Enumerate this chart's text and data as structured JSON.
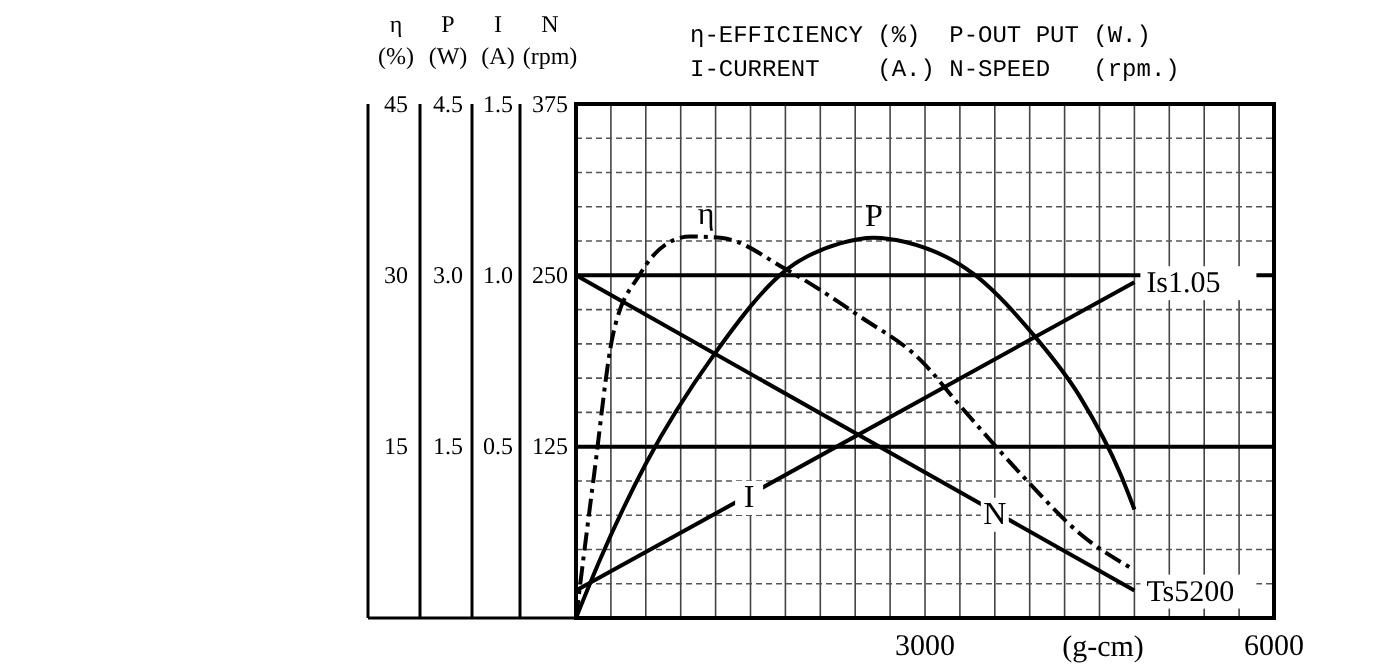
{
  "chart_data": [
    {
      "type": "line",
      "annotations": [
        "η-EFFICIENCY (%)  P-OUT PUT (W.)",
        "I-CURRENT    (A.) N-SPEED   (rpm.)",
        "Is1.05",
        "Ts5200"
      ],
      "xlabel": "(g-cm)",
      "ylabel": "I (A)",
      "y2label": "N (rpm)",
      "xlim": [
        0,
        6000
      ],
      "xticks": [
        {
          "value": 300,
          "label": null
        },
        {
          "value": 600,
          "label": null
        },
        {
          "value": 900,
          "label": null
        },
        {
          "value": 1200,
          "label": null
        },
        {
          "value": 1500,
          "label": null
        },
        {
          "value": 1800,
          "label": null
        },
        {
          "value": 2100,
          "label": null
        },
        {
          "value": 2400,
          "label": null
        },
        {
          "value": 2700,
          "label": null
        },
        3000,
        {
          "value": 3300,
          "label": null
        },
        {
          "value": 3600,
          "label": null
        },
        {
          "value": 3900,
          "label": null
        },
        {
          "value": 4200,
          "label": null
        },
        {
          "value": 4500,
          "label": null
        },
        {
          "value": 4800,
          "label": null
        },
        {
          "value": 5100,
          "label": null
        },
        {
          "value": 5400,
          "label": null
        },
        {
          "value": 5700,
          "label": null
        },
        6000
      ],
      "ylim": [
        0,
        1.5
      ],
      "yticks": [
        {
          "value": 0.1,
          "label": null
        },
        {
          "value": 0.2,
          "label": null
        },
        {
          "value": 0.3,
          "label": null
        },
        {
          "value": 0.4,
          "label": null
        },
        0.5,
        {
          "value": 0.6,
          "label": null
        },
        {
          "value": 0.7,
          "label": null
        },
        {
          "value": 0.8,
          "label": null
        },
        {
          "value": 0.9,
          "label": null
        },
        {
          "value": 1,
          "label": "1.0"
        },
        {
          "value": 1.1,
          "label": null
        },
        {
          "value": 1.2,
          "label": null
        },
        {
          "value": 1.3,
          "label": null
        },
        {
          "value": 1.4,
          "label": null
        },
        1.5
      ],
      "y2lim": [
        0,
        375
      ],
      "y2ticks": [
        125,
        250,
        375
      ],
      "grid": true,
      "series": [
        {
          "name": "I",
          "color": "#000000",
          "line_style": "solid",
          "x": [
            0,
            4800
          ],
          "values": [
            0.08,
            0.98
          ]
        },
        {
          "name": "N",
          "color": "#000000",
          "axis": "y2",
          "line_style": "solid",
          "x": [
            0,
            4800
          ],
          "values": [
            250,
            20
          ]
        }
      ]
    },
    {
      "type": "line",
      "ylabel": "η (%)",
      "y2label": "P (W)",
      "xlim": [
        0,
        6000
      ],
      "tick_labels": "y",
      "ylim": [
        0,
        45
      ],
      "yticks": [
        15,
        30,
        45
      ],
      "y2lim": [
        0,
        4.5
      ],
      "y2ticks": [
        1.5,
        {
          "value": 3,
          "label": "3.0"
        },
        4.5
      ],
      "series": [
        {
          "name": "η",
          "color": "#000000",
          "line_style": "dashed",
          "x": [
            0,
            150,
            320,
            550,
            770,
            980,
            1240,
            1810,
            2440,
            2960,
            3300,
            3870,
            4330,
            4800
          ],
          "values": [
            0,
            12.1,
            24.9,
            30.1,
            32.7,
            33.4,
            33.3,
            30.5,
            26.4,
            22.6,
            18.6,
            12.1,
            7.4,
            4.2
          ]
        },
        {
          "name": "P",
          "color": "#000000",
          "axis": "y2",
          "line_style": "solid",
          "x": [
            0,
            206,
            600,
            1190,
            1810,
            2270,
            2560,
            2840,
            3420,
            3940,
            4330,
            4680,
            4800
          ],
          "values": [
            0,
            0.51,
            1.35,
            2.31,
            3.05,
            3.28,
            3.33,
            3.29,
            3.01,
            2.47,
            1.94,
            1.26,
            0.95
          ]
        }
      ]
    }
  ]
}
